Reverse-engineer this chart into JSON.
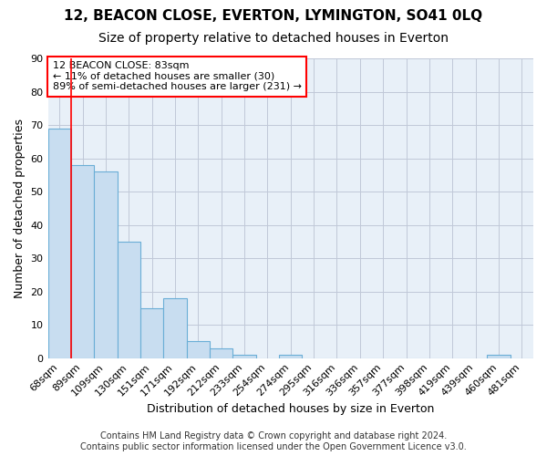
{
  "title": "12, BEACON CLOSE, EVERTON, LYMINGTON, SO41 0LQ",
  "subtitle": "Size of property relative to detached houses in Everton",
  "xlabel": "Distribution of detached houses by size in Everton",
  "ylabel": "Number of detached properties",
  "bar_labels": [
    "68sqm",
    "89sqm",
    "109sqm",
    "130sqm",
    "151sqm",
    "171sqm",
    "192sqm",
    "212sqm",
    "233sqm",
    "254sqm",
    "274sqm",
    "295sqm",
    "316sqm",
    "336sqm",
    "357sqm",
    "377sqm",
    "398sqm",
    "419sqm",
    "439sqm",
    "460sqm",
    "481sqm"
  ],
  "bar_values": [
    69,
    58,
    56,
    35,
    15,
    18,
    5,
    3,
    1,
    0,
    1,
    0,
    0,
    0,
    0,
    0,
    0,
    0,
    0,
    1,
    0
  ],
  "bar_color": "#c8ddf0",
  "bar_edge_color": "#6aaed6",
  "background_color": "#ffffff",
  "plot_bg_color": "#e8f0f8",
  "grid_color": "#c0c8d8",
  "annotation_text": "12 BEACON CLOSE: 83sqm\n← 11% of detached houses are smaller (30)\n89% of semi-detached houses are larger (231) →",
  "annotation_box_color": "#ffffff",
  "annotation_border_color": "red",
  "property_line_x": 0.5,
  "ylim": [
    0,
    90
  ],
  "yticks": [
    0,
    10,
    20,
    30,
    40,
    50,
    60,
    70,
    80,
    90
  ],
  "footnote": "Contains HM Land Registry data © Crown copyright and database right 2024.\nContains public sector information licensed under the Open Government Licence v3.0.",
  "title_fontsize": 11,
  "subtitle_fontsize": 10,
  "axis_label_fontsize": 9,
  "tick_fontsize": 8,
  "annotation_fontsize": 8,
  "footnote_fontsize": 7
}
